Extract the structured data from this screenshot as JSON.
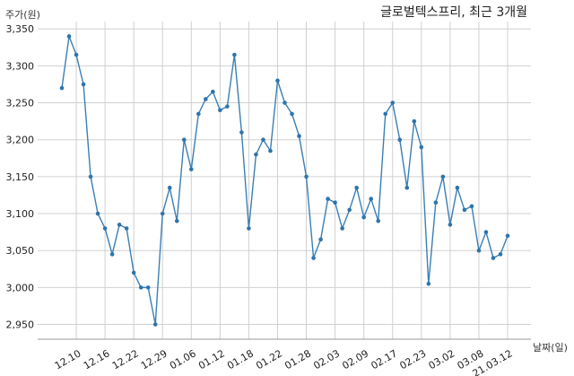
{
  "chart_data": {
    "type": "line",
    "title": "글로벌텍스프리, 최근 3개월",
    "ylabel": "주가(원)",
    "xlabel": "날짜(일)",
    "ylim": [
      2930,
      3360
    ],
    "yticks": [
      2950,
      3000,
      3050,
      3100,
      3150,
      3200,
      3250,
      3300,
      3350
    ],
    "ytick_labels": [
      "2,950",
      "3,000",
      "3,050",
      "3,100",
      "3,150",
      "3,200",
      "3,250",
      "3,300",
      "3,350"
    ],
    "grid": true,
    "xtick_labels": [
      {
        "label": "12.10",
        "index": 2
      },
      {
        "label": "12.16",
        "index": 6
      },
      {
        "label": "12.22",
        "index": 10
      },
      {
        "label": "12.29",
        "index": 14
      },
      {
        "label": "01.06",
        "index": 18
      },
      {
        "label": "01.12",
        "index": 22
      },
      {
        "label": "01.18",
        "index": 26
      },
      {
        "label": "01.22",
        "index": 30
      },
      {
        "label": "01.28",
        "index": 34
      },
      {
        "label": "02.03",
        "index": 38
      },
      {
        "label": "02.09",
        "index": 42
      },
      {
        "label": "02.17",
        "index": 46
      },
      {
        "label": "02.23",
        "index": 50
      },
      {
        "label": "03.02",
        "index": 54
      },
      {
        "label": "03.08",
        "index": 58
      },
      {
        "label": "21.03.12",
        "index": 62
      }
    ],
    "series": [
      {
        "color": "#2e74ab",
        "values": [
          3270,
          3340,
          3315,
          3275,
          3150,
          3100,
          3080,
          3045,
          3085,
          3080,
          3020,
          3000,
          3000,
          2950,
          3100,
          3135,
          3090,
          3200,
          3160,
          3235,
          3255,
          3265,
          3240,
          3245,
          3315,
          3210,
          3080,
          3180,
          3200,
          3185,
          3280,
          3250,
          3235,
          3205,
          3150,
          3040,
          3065,
          3120,
          3115,
          3080,
          3105,
          3135,
          3095,
          3120,
          3090,
          3235,
          3250,
          3200,
          3135,
          3225,
          3190,
          3005,
          3115,
          3150,
          3085,
          3135,
          3105,
          3110,
          3050,
          3075,
          3040,
          3045,
          3070
        ]
      }
    ]
  }
}
